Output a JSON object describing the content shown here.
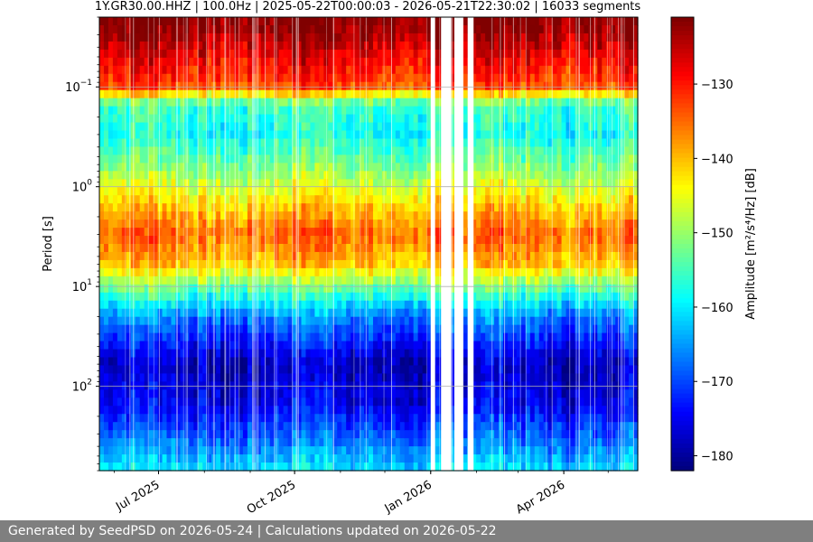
{
  "chart_data": {
    "type": "heatmap",
    "title": "1Y.GR30.00.HHZ | 100.0Hz | 2025-05-22T00:00:03 - 2026-05-21T22:30:02 | 16033 segments",
    "ylabel": "Period [s]",
    "y_scale": "log",
    "y_inverted": true,
    "x_range": [
      "2025-05-22",
      "2026-05-21"
    ],
    "y_range": [
      0.02,
      700
    ],
    "x_ticks": [
      {
        "label": "Jul 2025",
        "date": "2025-07-01"
      },
      {
        "label": "Oct 2025",
        "date": "2025-10-01"
      },
      {
        "label": "Jan 2026",
        "date": "2026-01-01"
      },
      {
        "label": "Apr 2026",
        "date": "2026-04-01"
      }
    ],
    "y_ticks": [
      {
        "value": 0.1,
        "base": "10",
        "exp": "−1"
      },
      {
        "value": 1,
        "base": "10",
        "exp": "0"
      },
      {
        "value": 10,
        "base": "10",
        "exp": "1"
      },
      {
        "value": 100,
        "base": "10",
        "exp": "2"
      }
    ],
    "grid": true,
    "colormap": "jet",
    "colorbar": {
      "label": "Amplitude [m²/s⁴/Hz] [dB]",
      "range": [
        -182,
        -121
      ],
      "ticks": [
        -130,
        -140,
        -150,
        -160,
        -170,
        -180
      ],
      "tick_labels": [
        "−130",
        "−140",
        "−150",
        "−160",
        "−170",
        "−180"
      ]
    },
    "amplitude_by_period": [
      {
        "period": 0.025,
        "db": -121
      },
      {
        "period": 0.05,
        "db": -127
      },
      {
        "period": 0.1,
        "db": -133
      },
      {
        "period": 0.15,
        "db": -155
      },
      {
        "period": 0.3,
        "db": -158
      },
      {
        "period": 0.7,
        "db": -150
      },
      {
        "period": 1.5,
        "db": -141
      },
      {
        "period": 3,
        "db": -134
      },
      {
        "period": 6,
        "db": -140
      },
      {
        "period": 10,
        "db": -152
      },
      {
        "period": 20,
        "db": -166
      },
      {
        "period": 60,
        "db": -178
      },
      {
        "period": 150,
        "db": -175
      },
      {
        "period": 400,
        "db": -166
      },
      {
        "period": 700,
        "db": -160
      }
    ],
    "data_gaps": [
      [
        "2026-01-01",
        "2026-01-04"
      ],
      [
        "2026-01-08",
        "2026-01-15"
      ],
      [
        "2026-01-17",
        "2026-01-23"
      ],
      [
        "2026-01-26",
        "2026-01-30"
      ]
    ]
  },
  "footer": {
    "text": "Generated by SeedPSD on 2026-05-24 | Calculations updated on 2026-05-22"
  }
}
